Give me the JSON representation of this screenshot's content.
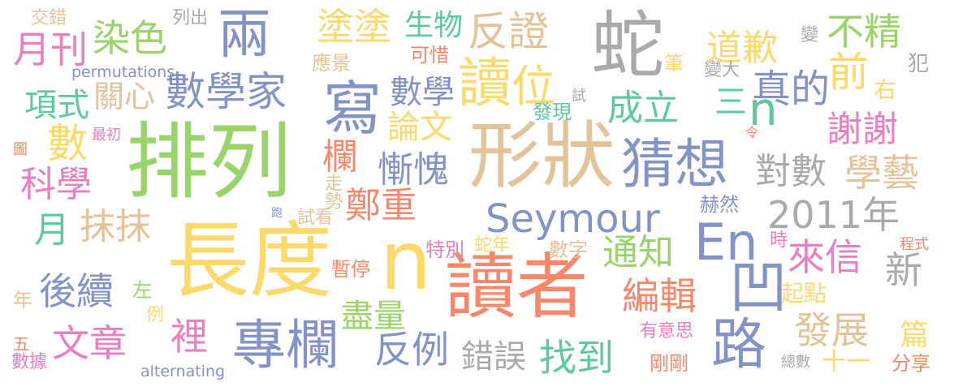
{
  "words": [
    {
      "text": "排列",
      "color": "#9bd36b"
    },
    {
      "text": "長度",
      "color": "#fcd96b"
    },
    {
      "text": "形狀",
      "color": "#e2c39a"
    },
    {
      "text": "讀者",
      "color": "#f5876a"
    },
    {
      "text": "蛇",
      "color": "#aaaaaa"
    },
    {
      "text": "n",
      "color": "#fcd96b"
    },
    {
      "text": "專欄",
      "color": "#8393c6"
    },
    {
      "text": "猜想",
      "color": "#8393c6"
    },
    {
      "text": "Seymour",
      "color": "#8393c6"
    },
    {
      "text": "En",
      "color": "#8393c6"
    },
    {
      "text": "2011年",
      "color": "#aaaaaa"
    },
    {
      "text": "兩",
      "color": "#8393c6"
    },
    {
      "text": "寫",
      "color": "#8393c6"
    },
    {
      "text": "讀",
      "color": "#fcd96b"
    },
    {
      "text": "路",
      "color": "#8393c6"
    },
    {
      "text": "凹",
      "color": "#8393c6"
    },
    {
      "text": "反證",
      "color": "#e2c39a"
    },
    {
      "text": "數學家",
      "color": "#8393c6"
    },
    {
      "text": "染色",
      "color": "#9bd36b"
    },
    {
      "text": "月刊",
      "color": "#e87fbf"
    },
    {
      "text": "塗塗",
      "color": "#fcd96b"
    },
    {
      "text": "生物",
      "color": "#5ec9a0"
    },
    {
      "text": "道歉",
      "color": "#fcd96b"
    },
    {
      "text": "不精",
      "color": "#9bd36b"
    },
    {
      "text": "變",
      "color": "#aaaaaa"
    },
    {
      "text": "變大",
      "color": "#aaaaaa"
    },
    {
      "text": "犯",
      "color": "#aaaaaa"
    },
    {
      "text": "前",
      "color": "#fcd96b"
    },
    {
      "text": "右",
      "color": "#fcd96b"
    },
    {
      "text": "真的",
      "color": "#8393c6"
    },
    {
      "text": "三",
      "color": "#5ec9a0"
    },
    {
      "text": "n",
      "color": "#5ec9a0"
    },
    {
      "text": "謝謝",
      "color": "#e87fbf"
    },
    {
      "text": "對數",
      "color": "#aaaaaa"
    },
    {
      "text": "學藝",
      "color": "#e2c39a"
    },
    {
      "text": "位",
      "color": "#fcd96b"
    },
    {
      "text": "數學",
      "color": "#8393c6"
    },
    {
      "text": "論文",
      "color": "#fcd96b"
    },
    {
      "text": "成立",
      "color": "#5ec9a0"
    },
    {
      "text": "發現",
      "color": "#5ec9a0"
    },
    {
      "text": "慚愧",
      "color": "#8393c6"
    },
    {
      "text": "欄",
      "color": "#f5876a"
    },
    {
      "text": "鄭重",
      "color": "#f5876a"
    },
    {
      "text": "項式",
      "color": "#5ec9a0"
    },
    {
      "text": "關心",
      "color": "#e2c39a"
    },
    {
      "text": "數",
      "color": "#fcd96b"
    },
    {
      "text": "科學",
      "color": "#e87fbf"
    },
    {
      "text": "月",
      "color": "#5ec9a0"
    },
    {
      "text": "抹抹",
      "color": "#e2c39a"
    },
    {
      "text": "後續",
      "color": "#8393c6"
    },
    {
      "text": "文章",
      "color": "#e87fbf"
    },
    {
      "text": "裡",
      "color": "#e87fbf"
    },
    {
      "text": "反例",
      "color": "#8393c6"
    },
    {
      "text": "錯誤",
      "color": "#aaaaaa"
    },
    {
      "text": "找到",
      "color": "#5ec9a0"
    },
    {
      "text": "通知",
      "color": "#9bd36b"
    },
    {
      "text": "編輯",
      "color": "#f5876a"
    },
    {
      "text": "來信",
      "color": "#e87fbf"
    },
    {
      "text": "新",
      "color": "#aaaaaa"
    },
    {
      "text": "發展",
      "color": "#e2c39a"
    },
    {
      "text": "篇",
      "color": "#fcd96b"
    },
    {
      "text": "起點",
      "color": "#fcd96b"
    },
    {
      "text": "盡量",
      "color": "#9bd36b"
    },
    {
      "text": "暫停",
      "color": "#f5876a"
    },
    {
      "text": "特別",
      "color": "#e87fbf"
    },
    {
      "text": "蛇年",
      "color": "#fcd96b"
    },
    {
      "text": "數字",
      "color": "#e2c39a"
    },
    {
      "text": "赫然",
      "color": "#8393c6"
    },
    {
      "text": "時",
      "color": "#e87fbf"
    },
    {
      "text": "程式",
      "color": "#f5876a"
    },
    {
      "text": "有意思",
      "color": "#e87fbf"
    },
    {
      "text": "剛剛",
      "color": "#f5876a"
    },
    {
      "text": "十一",
      "color": "#fcd96b"
    },
    {
      "text": "分享",
      "color": "#f5876a"
    },
    {
      "text": "總數",
      "color": "#aaaaaa"
    },
    {
      "text": "alternating",
      "color": "#8393c6"
    },
    {
      "text": "permutations",
      "color": "#8393c6"
    },
    {
      "text": "數據",
      "color": "#e87fbf"
    },
    {
      "text": "五",
      "color": "#f5876a"
    },
    {
      "text": "年",
      "color": "#e2c39a"
    },
    {
      "text": "左",
      "color": "#9bd36b"
    },
    {
      "text": "例",
      "color": "#fcd96b"
    },
    {
      "text": "交錯",
      "color": "#e2c39a"
    },
    {
      "text": "列出",
      "color": "#aaaaaa"
    },
    {
      "text": "應景",
      "color": "#e2c39a"
    },
    {
      "text": "可惜",
      "color": "#f5876a"
    },
    {
      "text": "試",
      "color": "#aaaaaa"
    },
    {
      "text": "筆",
      "color": "#fcd96b"
    },
    {
      "text": "令",
      "color": "#f5876a"
    },
    {
      "text": "最初",
      "color": "#e87fbf"
    },
    {
      "text": "圖",
      "color": "#f5876a"
    },
    {
      "text": "走勢",
      "color": "#e2c39a"
    },
    {
      "text": "試看",
      "color": "#e2c39a"
    },
    {
      "text": "跑",
      "color": "#8393c6"
    }
  ]
}
